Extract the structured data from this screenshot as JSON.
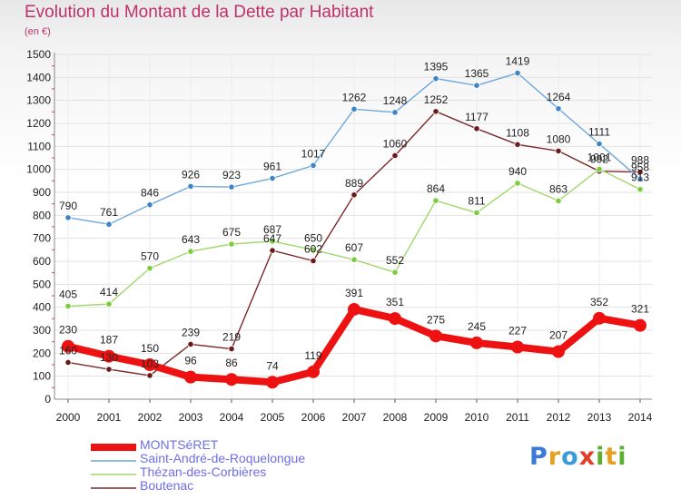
{
  "title": "Evolution du Montant de la Dette par Habitant",
  "unit_label": "(en €)",
  "brand": {
    "text": "Proxiti",
    "letters": [
      "P",
      "r",
      "o",
      "x",
      "i",
      "t",
      "i"
    ],
    "letter_colors": [
      "#3a7ad8",
      "#e8a020",
      "#3a9ad8",
      "#e0402a",
      "#5ab030",
      "#e8a020",
      "#5ab030"
    ]
  },
  "chart_data": {
    "type": "line",
    "title": "Evolution du Montant de la Dette par Habitant",
    "ylabel": "(en €)",
    "xlabel": "",
    "categories": [
      "2000",
      "2001",
      "2002",
      "2003",
      "2004",
      "2005",
      "2006",
      "2007",
      "2008",
      "2009",
      "2010",
      "2011",
      "2012",
      "2013",
      "2014"
    ],
    "ylim": [
      0,
      1500
    ],
    "yticks": [
      0,
      100,
      200,
      300,
      400,
      500,
      600,
      700,
      800,
      900,
      1000,
      1100,
      1200,
      1300,
      1400,
      1500
    ],
    "grid": true,
    "legend_position": "bottom-left",
    "series": [
      {
        "name": "MONTSéRET",
        "color": "#ee1111",
        "values": [
          230,
          187,
          150,
          96,
          86,
          74,
          119,
          391,
          351,
          275,
          245,
          227,
          207,
          352,
          321
        ],
        "labels": [
          "230",
          "187",
          "150",
          "96",
          "86",
          "74",
          "119",
          "391",
          "351",
          "275",
          "245",
          "227",
          "207",
          "352",
          "321"
        ]
      },
      {
        "name": "Saint-André-de-Roquelongue",
        "color": "#6fa8dc",
        "marker_color": "#3d85c6",
        "values": [
          790,
          761,
          846,
          926,
          923,
          961,
          1017,
          1262,
          1248,
          1395,
          1365,
          1419,
          1264,
          1111,
          958
        ],
        "labels": [
          "790",
          "761",
          "846",
          "926",
          "923",
          "961",
          "1017",
          "1262",
          "1248",
          "1395",
          "1365",
          "1419",
          "1264",
          "1111",
          "958"
        ]
      },
      {
        "name": "Thézan-des-Corbières",
        "color": "#9fd86a",
        "marker_color": "#7acc3a",
        "values": [
          405,
          414,
          570,
          643,
          675,
          687,
          650,
          607,
          552,
          864,
          811,
          940,
          863,
          1001,
          913
        ],
        "labels": [
          "405",
          "414",
          "570",
          "643",
          "675",
          "687",
          "650",
          "607",
          "552",
          "864",
          "811",
          "940",
          "863",
          "1001",
          "913"
        ]
      },
      {
        "name": "Boutenac",
        "color": "#7a2a2a",
        "marker_color": "#6a1a1a",
        "values": [
          160,
          130,
          103,
          239,
          219,
          647,
          602,
          889,
          1060,
          1252,
          1177,
          1108,
          1080,
          992,
          988
        ],
        "labels": [
          "160",
          "130",
          "103",
          "239",
          "219",
          "647",
          "602",
          "889",
          "1060",
          "1252",
          "1177",
          "1108",
          "1080",
          "992",
          "988"
        ]
      }
    ]
  }
}
